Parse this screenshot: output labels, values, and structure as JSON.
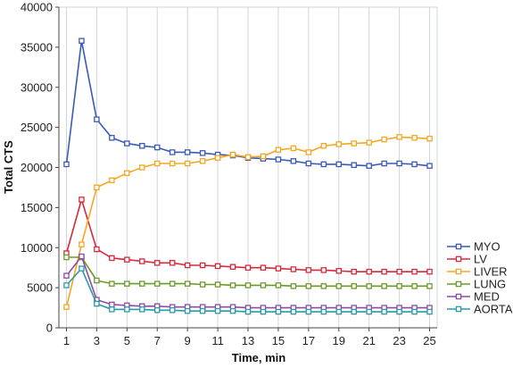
{
  "chart_data": {
    "type": "line",
    "title": "",
    "xlabel": "Time, min",
    "ylabel": "Total CTS",
    "x": [
      1,
      2,
      3,
      4,
      5,
      6,
      7,
      8,
      9,
      10,
      11,
      12,
      13,
      14,
      15,
      16,
      17,
      18,
      19,
      20,
      21,
      22,
      23,
      24,
      25
    ],
    "x_ticks": [
      1,
      3,
      5,
      7,
      9,
      11,
      13,
      15,
      17,
      19,
      21,
      23,
      25
    ],
    "xlim": [
      0.5,
      25.5
    ],
    "ylim": [
      0,
      40000
    ],
    "y_ticks": [
      0,
      5000,
      10000,
      15000,
      20000,
      25000,
      30000,
      35000,
      40000
    ],
    "grid": "vertical",
    "legend_position": "right",
    "series": [
      {
        "name": "MYO",
        "color": "#3a5ab8",
        "values": [
          20400,
          35800,
          26000,
          23700,
          23000,
          22700,
          22500,
          21900,
          21900,
          21800,
          21600,
          21500,
          21200,
          21100,
          21000,
          20800,
          20500,
          20400,
          20400,
          20300,
          20200,
          20500,
          20500,
          20400,
          20200
        ]
      },
      {
        "name": "LV",
        "color": "#d8283a",
        "values": [
          9300,
          16000,
          9800,
          8700,
          8500,
          8300,
          8100,
          8100,
          7800,
          7800,
          7700,
          7600,
          7500,
          7500,
          7400,
          7300,
          7200,
          7200,
          7100,
          7000,
          7000,
          7000,
          7000,
          7000,
          7000
        ]
      },
      {
        "name": "LIVER",
        "color": "#f5a623",
        "values": [
          2600,
          10400,
          17500,
          18400,
          19300,
          20000,
          20500,
          20500,
          20500,
          20800,
          21200,
          21600,
          21300,
          21400,
          22200,
          22400,
          21900,
          22700,
          22900,
          23000,
          23100,
          23500,
          23800,
          23700,
          23600
        ]
      },
      {
        "name": "LUNG",
        "color": "#6a9a2a",
        "values": [
          8800,
          8800,
          5900,
          5500,
          5500,
          5500,
          5500,
          5500,
          5500,
          5400,
          5400,
          5300,
          5300,
          5300,
          5300,
          5200,
          5200,
          5200,
          5200,
          5200,
          5200,
          5200,
          5200,
          5200,
          5200
        ]
      },
      {
        "name": "MED",
        "color": "#8e4aa6",
        "values": [
          6500,
          8900,
          3500,
          2900,
          2800,
          2700,
          2700,
          2600,
          2600,
          2600,
          2600,
          2600,
          2500,
          2500,
          2500,
          2500,
          2500,
          2500,
          2500,
          2500,
          2500,
          2500,
          2500,
          2500,
          2500
        ]
      },
      {
        "name": "AORTA",
        "color": "#2a9aa8",
        "values": [
          5300,
          7400,
          3000,
          2300,
          2300,
          2300,
          2200,
          2200,
          2100,
          2100,
          2100,
          2100,
          2000,
          2000,
          2000,
          2000,
          2000,
          2000,
          2000,
          2000,
          2000,
          2000,
          2000,
          2000,
          2000
        ]
      }
    ]
  }
}
